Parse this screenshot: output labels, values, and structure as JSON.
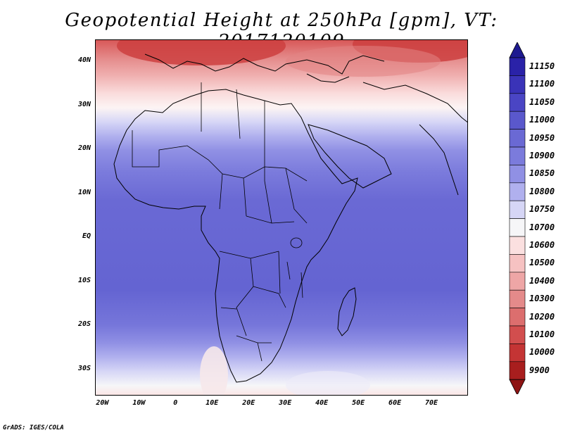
{
  "title": "Geopotential Height at 250hPa [gpm], VT: 2017120109",
  "credit": "GrADS: IGES/COLA",
  "map": {
    "lon_range": [
      -22,
      80
    ],
    "lat_range": [
      -36,
      45
    ],
    "lat_ticks": [
      {
        "value": 40,
        "label": "40N"
      },
      {
        "value": 30,
        "label": "30N"
      },
      {
        "value": 20,
        "label": "20N"
      },
      {
        "value": 10,
        "label": "10N"
      },
      {
        "value": 0,
        "label": "EQ"
      },
      {
        "value": -10,
        "label": "10S"
      },
      {
        "value": -20,
        "label": "20S"
      },
      {
        "value": -30,
        "label": "30S"
      }
    ],
    "lon_ticks": [
      {
        "value": -20,
        "label": "20W"
      },
      {
        "value": -10,
        "label": "10W"
      },
      {
        "value": 0,
        "label": "0"
      },
      {
        "value": 10,
        "label": "10E"
      },
      {
        "value": 20,
        "label": "20E"
      },
      {
        "value": 30,
        "label": "30E"
      },
      {
        "value": 40,
        "label": "40E"
      },
      {
        "value": 50,
        "label": "50E"
      },
      {
        "value": 60,
        "label": "60E"
      },
      {
        "value": 70,
        "label": "70E"
      }
    ]
  },
  "colorbar": {
    "levels": [
      {
        "label": "11150",
        "color": "#2a22a8"
      },
      {
        "label": "11100",
        "color": "#3a33b8"
      },
      {
        "label": "11050",
        "color": "#4a45c4"
      },
      {
        "label": "11000",
        "color": "#5a58cc"
      },
      {
        "label": "10950",
        "color": "#6a69d4"
      },
      {
        "label": "10900",
        "color": "#7b7bdc"
      },
      {
        "label": "10850",
        "color": "#9090e4"
      },
      {
        "label": "10800",
        "color": "#b0b0ee"
      },
      {
        "label": "10750",
        "color": "#d6d6f6"
      },
      {
        "label": "10700",
        "color": "#f6f6f8"
      },
      {
        "label": "10600",
        "color": "#fbe0e0"
      },
      {
        "label": "10500",
        "color": "#f6c2c2"
      },
      {
        "label": "10400",
        "color": "#eea6a6"
      },
      {
        "label": "10300",
        "color": "#e48a8a"
      },
      {
        "label": "10200",
        "color": "#dc6e6e"
      },
      {
        "label": "10100",
        "color": "#d24e4e"
      },
      {
        "label": "10000",
        "color": "#c43434"
      },
      {
        "label": "9900",
        "color": "#a81e1e"
      }
    ],
    "top_arrow_color": "#1e1a90",
    "bottom_arrow_color": "#8e1414"
  }
}
